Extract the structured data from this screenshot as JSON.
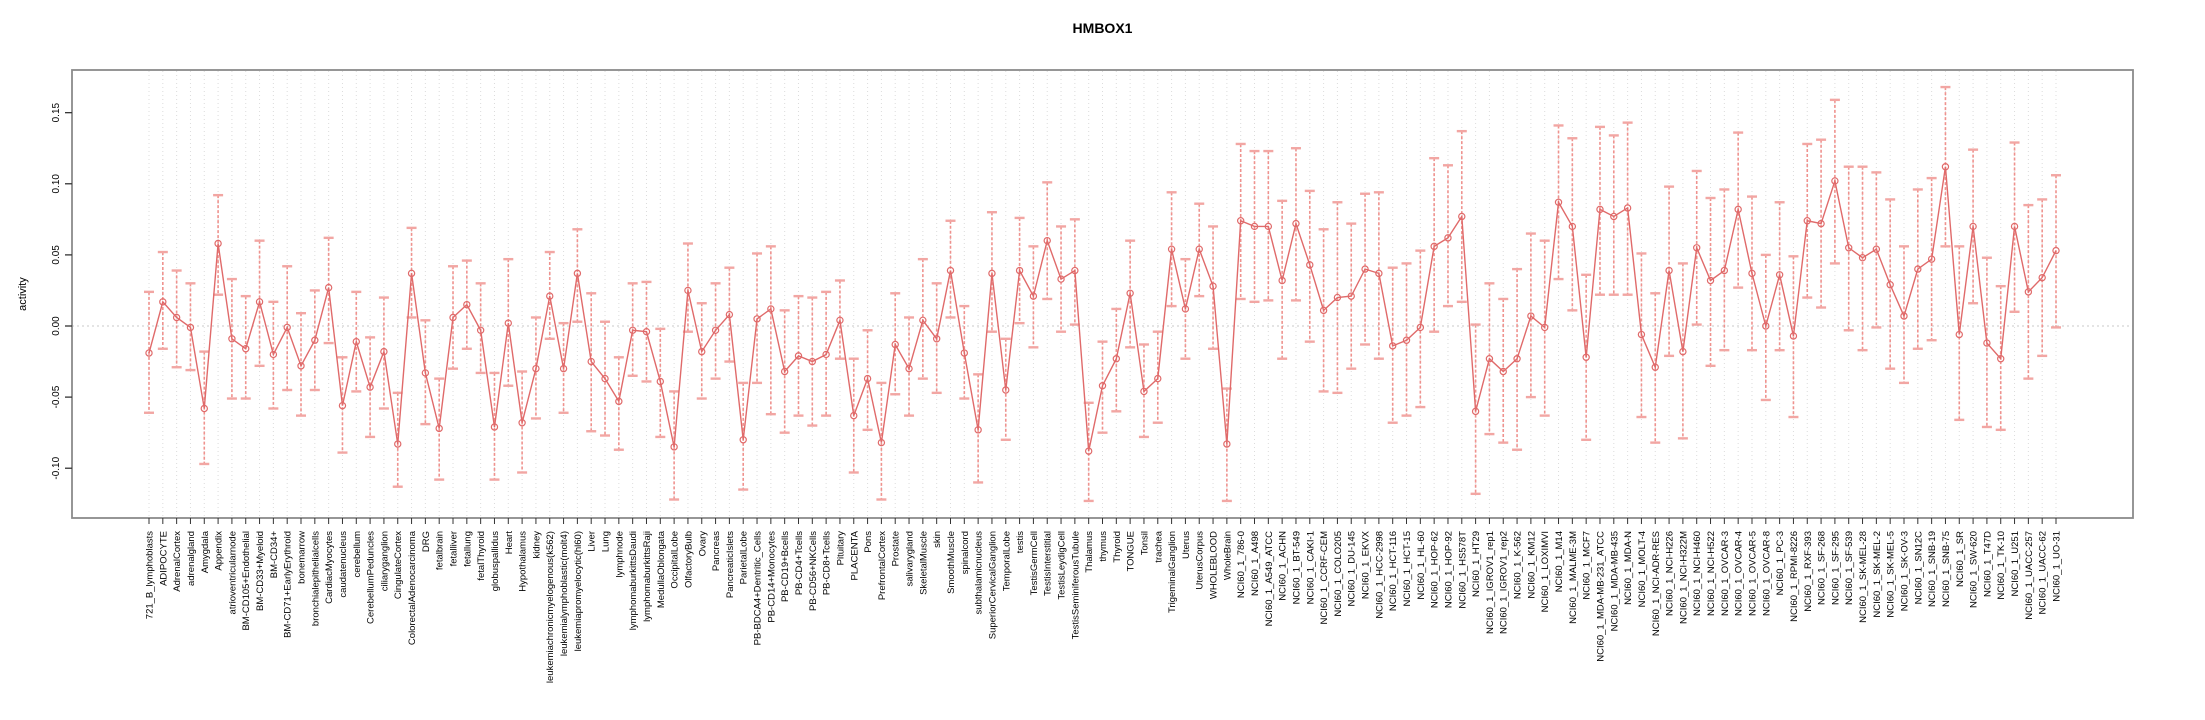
{
  "title": "HMBOX1",
  "ylabel": "activity",
  "chart_data": {
    "type": "line",
    "title": "HMBOX1",
    "xlabel": "",
    "ylabel": "activity",
    "ylim": [
      -0.135,
      0.18
    ],
    "yticks": [
      -0.1,
      -0.05,
      0.0,
      0.05,
      0.1,
      0.15
    ],
    "ytick_labels": [
      "-0.10",
      "-0.05",
      "0.00",
      "0.05",
      "0.10",
      "0.15"
    ],
    "grid": "vertical dotted gridline per category, dotted horizontal line at 0",
    "legend": "none",
    "marker": "open-circle",
    "error_bars": true,
    "colors": {
      "series": "#e06a6a",
      "whisker": "#ef928e",
      "whisker_cap": "#f2a6a3",
      "gridline": "#dcdcdc",
      "zero_line": "#c8c8c8",
      "frame": "#8b8b8b",
      "tick": "#333333",
      "text": "#000000"
    },
    "categories": [
      "721_B_lymphoblasts",
      "ADIPOCYTE",
      "AdrenalCortex",
      "adrenalgland",
      "Amygdala",
      "Appendix",
      "atrioventricularnode",
      "BM-CD105+Endothelial",
      "BM-CD33+Myeloid",
      "BM-CD34+",
      "BM-CD71+EarlyErythroid",
      "bonemarrow",
      "bronchialepithelialcells",
      "CardiacMyocytes",
      "caudatenucleus",
      "cerebellum",
      "CerebellumPeduncles",
      "ciliaryganglion",
      "CingulateCortex",
      "ColorectalAdenocarcinoma",
      "DRG",
      "fetalbrain",
      "fetalliver",
      "fetallung",
      "fetalThyroid",
      "globuspallidus",
      "Heart",
      "Hypothalamus",
      "kidney",
      "leukemiachronicmyelogenous(k562)",
      "leukemialymphoblastic(molt4)",
      "leukemiapromyelocytic(hl60)",
      "Liver",
      "Lung",
      "lymphnode",
      "lymphomaburkittsDaudi",
      "lymphomaburkittsRaji",
      "MedullaOblongata",
      "OccipitalLobe",
      "OlfactoryBulb",
      "Ovary",
      "Pancreas",
      "PancreaticIslets",
      "ParietalLobe",
      "PB-BDCA4+Dentritic_Cells",
      "PB-CD14+Monocytes",
      "PB-CD19+Bcells",
      "PB-CD4+Tcells",
      "PB-CD56+NKCells",
      "PB-CD8+Tcells",
      "Pituitary",
      "PLACENTA",
      "Pons",
      "PrefrontalCortex",
      "Prostate",
      "salivarygland",
      "SkeletalMuscle",
      "skin",
      "SmoothMuscle",
      "spinalcord",
      "subthalamicnucleus",
      "SuperiorCervicalGanglion",
      "TemporalLobe",
      "testis",
      "TestisGermCell",
      "TestisInterstitial",
      "TestisLeydigCell",
      "TestisSeminiferousTubule",
      "Thalamus",
      "thymus",
      "Thyroid",
      "TONGUE",
      "Tonsil",
      "trachea",
      "TrigeminalGanglion",
      "Uterus",
      "UterusCorpus",
      "WHOLEBLOOD",
      "WholeBrain",
      "NCI60_1_786-0",
      "NCI60_1_A498",
      "NCI60_1_A549_ATCC",
      "NCI60_1_ACHN",
      "NCI60_1_BT-549",
      "NCI60_1_CAKI-1",
      "NCI60_1_CCRF-CEM",
      "NCI60_1_COLO205",
      "NCI60_1_DU-145",
      "NCI60_1_EKVX",
      "NCI60_1_HCC-2998",
      "NCI60_1_HCT-116",
      "NCI60_1_HCT-15",
      "NCI60_1_HL-60",
      "NCI60_1_HOP-62",
      "NCI60_1_HOP-92",
      "NCI60_1_HS578T",
      "NCI60_1_HT29",
      "NCI60_1_IGROV1_rep1",
      "NCI60_1_IGROV1_rep2",
      "NCI60_1_K-562",
      "NCI60_1_KM12",
      "NCI60_1_LOXIMVI",
      "NCI60_1_M14",
      "NCI60_1_MALME-3M",
      "NCI60_1_MCF7",
      "NCI60_1_MDA-MB-231_ATCC",
      "NCI60_1_MDA-MB-435",
      "NCI60_1_MDA-N",
      "NCI60_1_MOLT-4",
      "NCI60_1_NCI-ADR-RES",
      "NCI60_1_NCI-H226",
      "NCI60_1_NCI-H322M",
      "NCI60_1_NCI-H460",
      "NCI60_1_NCI-H522",
      "NCI60_1_OVCAR-3",
      "NCI60_1_OVCAR-4",
      "NCI60_1_OVCAR-5",
      "NCI60_1_OVCAR-8",
      "NCI60_1_PC-3",
      "NCI60_1_RPMI-8226",
      "NCI60_1_RXF-393",
      "NCI60_1_SF-268",
      "NCI60_1_SF-295",
      "NCI60_1_SF-539",
      "NCI60_1_SK-MEL-28",
      "NCI60_1_SK-MEL-2",
      "NCI60_1_SK-MEL-5",
      "NCI60_1_SK-OV-3",
      "NCI60_1_SN12C",
      "NCI60_1_SNB-19",
      "NCI60_1_SNB-75",
      "NCI60_1_SR",
      "NCI60_1_SW-620",
      "NCI60_1_T47D",
      "NCI60_1_TK-10",
      "NCI60_1_U251",
      "NCI60_1_UACC-257",
      "NCI60_1_UACC-62",
      "NCI60_1_UO-31"
    ],
    "values": [
      -0.019,
      0.017,
      0.006,
      -0.001,
      -0.058,
      0.058,
      -0.009,
      -0.016,
      0.017,
      -0.02,
      -0.001,
      -0.028,
      -0.01,
      0.027,
      -0.056,
      -0.011,
      -0.043,
      -0.018,
      -0.083,
      0.037,
      -0.033,
      -0.072,
      0.006,
      0.015,
      -0.003,
      -0.071,
      0.002,
      -0.068,
      -0.03,
      0.021,
      -0.03,
      0.037,
      -0.025,
      -0.037,
      -0.053,
      -0.003,
      -0.004,
      -0.039,
      -0.085,
      0.025,
      -0.018,
      -0.003,
      0.008,
      -0.08,
      0.005,
      0.012,
      -0.032,
      -0.021,
      -0.025,
      -0.02,
      0.004,
      -0.063,
      -0.037,
      -0.082,
      -0.013,
      -0.03,
      0.004,
      -0.009,
      0.039,
      -0.019,
      -0.073,
      0.037,
      -0.045,
      0.039,
      0.021,
      0.06,
      0.033,
      0.039,
      -0.088,
      -0.042,
      -0.023,
      0.023,
      -0.046,
      -0.037,
      0.054,
      0.012,
      0.054,
      0.028,
      -0.083,
      0.074,
      0.07,
      0.07,
      0.032,
      0.072,
      0.043,
      0.011,
      0.02,
      0.021,
      0.04,
      0.037,
      -0.014,
      -0.01,
      -0.001,
      0.056,
      0.062,
      0.077,
      -0.06,
      -0.023,
      -0.032,
      -0.023,
      0.007,
      -0.001,
      0.087,
      0.07,
      -0.022,
      0.082,
      0.077,
      0.083,
      -0.006,
      -0.029,
      0.039,
      -0.018,
      0.055,
      0.032,
      0.039,
      0.082,
      0.037,
      0.0,
      0.036,
      -0.007,
      0.074,
      0.072,
      0.102,
      0.055,
      0.048,
      0.054,
      0.029,
      0.007,
      0.04,
      0.047,
      0.112,
      -0.006,
      0.07,
      -0.012,
      -0.023,
      0.07,
      0.024,
      0.034,
      0.053
    ],
    "err_low": [
      -0.061,
      -0.016,
      -0.029,
      -0.031,
      -0.097,
      0.022,
      -0.051,
      -0.051,
      -0.028,
      -0.058,
      -0.045,
      -0.063,
      -0.045,
      -0.012,
      -0.089,
      -0.046,
      -0.078,
      -0.058,
      -0.113,
      0.006,
      -0.069,
      -0.108,
      -0.03,
      -0.016,
      -0.033,
      -0.108,
      -0.042,
      -0.103,
      -0.065,
      -0.009,
      -0.061,
      0.003,
      -0.074,
      -0.077,
      -0.087,
      -0.035,
      -0.039,
      -0.078,
      -0.122,
      -0.004,
      -0.051,
      -0.037,
      -0.025,
      -0.115,
      -0.04,
      -0.062,
      -0.075,
      -0.063,
      -0.07,
      -0.063,
      -0.023,
      -0.103,
      -0.073,
      -0.122,
      -0.048,
      -0.063,
      -0.037,
      -0.047,
      0.006,
      -0.051,
      -0.11,
      -0.004,
      -0.08,
      0.002,
      -0.015,
      0.019,
      -0.004,
      0.001,
      -0.123,
      -0.075,
      -0.06,
      -0.015,
      -0.078,
      -0.068,
      0.014,
      -0.023,
      0.021,
      -0.016,
      -0.123,
      0.019,
      0.017,
      0.018,
      -0.023,
      0.018,
      -0.011,
      -0.046,
      -0.047,
      -0.03,
      -0.013,
      -0.023,
      -0.068,
      -0.063,
      -0.057,
      -0.004,
      0.014,
      0.017,
      -0.118,
      -0.076,
      -0.082,
      -0.087,
      -0.05,
      -0.063,
      0.033,
      0.011,
      -0.08,
      0.022,
      0.022,
      0.022,
      -0.064,
      -0.082,
      -0.021,
      -0.079,
      0.001,
      -0.028,
      -0.017,
      0.027,
      -0.017,
      -0.052,
      -0.017,
      -0.064,
      0.02,
      0.013,
      0.044,
      -0.003,
      -0.017,
      -0.001,
      -0.03,
      -0.04,
      -0.016,
      -0.01,
      0.056,
      -0.066,
      0.016,
      -0.071,
      -0.073,
      0.01,
      -0.037,
      -0.021,
      -0.001
    ],
    "err_high": [
      0.024,
      0.052,
      0.039,
      0.03,
      -0.018,
      0.092,
      0.033,
      0.021,
      0.06,
      0.017,
      0.042,
      0.009,
      0.025,
      0.062,
      -0.022,
      0.024,
      -0.008,
      0.02,
      -0.047,
      0.069,
      0.004,
      -0.037,
      0.042,
      0.046,
      0.03,
      -0.033,
      0.047,
      -0.032,
      0.006,
      0.052,
      0.002,
      0.068,
      0.023,
      0.003,
      -0.022,
      0.03,
      0.031,
      -0.002,
      -0.046,
      0.058,
      0.016,
      0.03,
      0.041,
      -0.04,
      0.051,
      0.056,
      0.011,
      0.021,
      0.02,
      0.024,
      0.032,
      -0.023,
      -0.003,
      -0.04,
      0.023,
      0.006,
      0.047,
      0.03,
      0.074,
      0.014,
      -0.034,
      0.08,
      -0.009,
      0.076,
      0.056,
      0.101,
      0.07,
      0.075,
      -0.054,
      -0.011,
      0.012,
      0.06,
      -0.013,
      -0.004,
      0.094,
      0.047,
      0.086,
      0.07,
      -0.044,
      0.128,
      0.123,
      0.123,
      0.088,
      0.125,
      0.095,
      0.068,
      0.087,
      0.072,
      0.093,
      0.094,
      0.041,
      0.044,
      0.053,
      0.118,
      0.113,
      0.137,
      0.001,
      0.03,
      0.019,
      0.04,
      0.065,
      0.06,
      0.141,
      0.132,
      0.036,
      0.14,
      0.134,
      0.143,
      0.051,
      0.023,
      0.098,
      0.044,
      0.109,
      0.09,
      0.096,
      0.136,
      0.091,
      0.05,
      0.087,
      0.049,
      0.128,
      0.131,
      0.159,
      0.112,
      0.112,
      0.108,
      0.089,
      0.056,
      0.096,
      0.104,
      0.168,
      0.056,
      0.124,
      0.048,
      0.028,
      0.129,
      0.085,
      0.089,
      0.106
    ]
  }
}
